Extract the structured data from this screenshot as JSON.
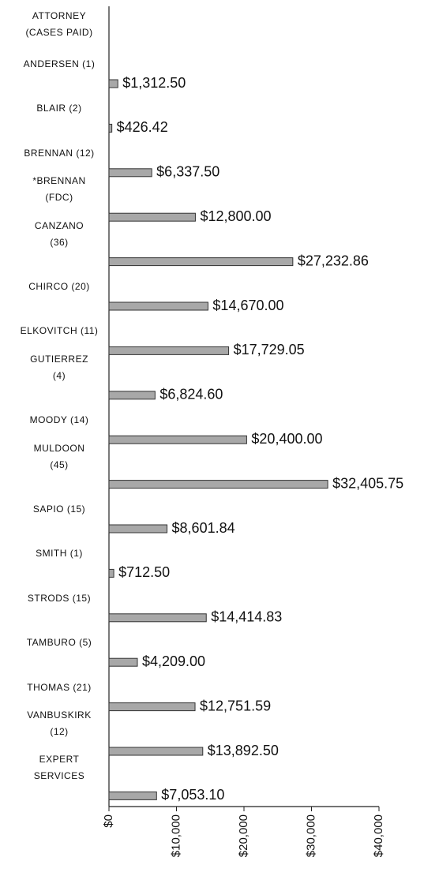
{
  "chart_data": {
    "type": "bar",
    "orientation": "horizontal",
    "ylabel": "ATTORNEY\n(CASES PAID)",
    "categories": [
      "ANDERSEN (1)",
      "BLAIR (2)",
      "BRENNAN (12)",
      "*BRENNAN\n(FDC)",
      "CANZANO\n(36)",
      "CHIRCO (20)",
      "ELKOVITCH (11)",
      "GUTIERREZ\n(4)",
      "MOODY (14)",
      "MULDOON\n(45)",
      "SAPIO (15)",
      "SMITH (1)",
      "STRODS (15)",
      "TAMBURO (5)",
      "THOMAS (21)",
      "VANBUSKIRK\n(12)",
      "EXPERT\nSERVICES"
    ],
    "values": [
      1312.5,
      426.42,
      6337.5,
      12800,
      27232.86,
      14670,
      17729.05,
      6824.6,
      20400,
      32405.75,
      8601.84,
      712.5,
      14414.83,
      4209,
      12751.59,
      13892.5,
      7053.1
    ],
    "value_labels": [
      "$1,312.50",
      "$426.42",
      "$6,337.50",
      "$12,800.00",
      "$27,232.86",
      "$14,670.00",
      "$17,729.05",
      "$6,824.60",
      "$20,400.00",
      "$32,405.75",
      "$8,601.84",
      "$712.50",
      "$14,414.83",
      "$4,209.00",
      "$12,751.59",
      "$13,892.50",
      "$7,053.10"
    ],
    "color": "#a8a8a8",
    "xlim": [
      0,
      40000
    ],
    "xticks": [
      {
        "value": 0,
        "label": "$0"
      },
      {
        "value": 10000,
        "label": "$10,000"
      },
      {
        "value": 20000,
        "label": "$20,000"
      },
      {
        "value": 30000,
        "label": "$30,000"
      },
      {
        "value": 40000,
        "label": "$40,000"
      }
    ],
    "grid": false
  }
}
